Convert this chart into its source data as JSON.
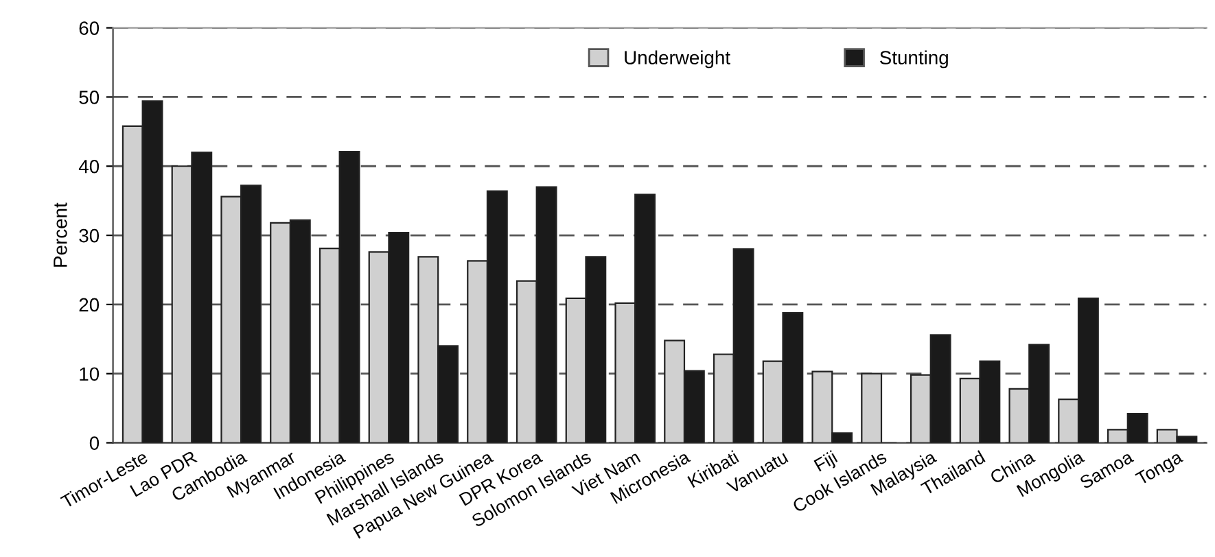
{
  "chart_data": {
    "type": "bar",
    "ylabel": "Percent",
    "categories": [
      "Timor-Leste",
      "Lao PDR",
      "Cambodia",
      "Myanmar",
      "Indonesia",
      "Philippines",
      "Marshall Islands",
      "Papua New Guinea",
      "DPR Korea",
      "Solomon Islands",
      "Viet Nam",
      "Micronesia",
      "Kiribati",
      "Vanuatu",
      "Fiji",
      "Cook Islands",
      "Malaysia",
      "Thailand",
      "China",
      "Mongolia",
      "Samoa",
      "Tonga"
    ],
    "series": [
      {
        "name": "Underweight",
        "color": "#d0d0d0",
        "values": [
          45.8,
          40.0,
          35.6,
          31.8,
          28.1,
          27.6,
          26.9,
          26.3,
          23.4,
          20.9,
          20.2,
          14.8,
          12.8,
          11.8,
          10.3,
          10.0,
          9.8,
          9.3,
          7.8,
          6.3,
          1.9,
          1.9
        ]
      },
      {
        "name": "Stunting",
        "color": "#1a1a1a",
        "values": [
          49.4,
          42.0,
          37.2,
          32.2,
          42.1,
          30.4,
          14.0,
          36.4,
          37.0,
          26.9,
          35.9,
          10.4,
          28.0,
          18.8,
          1.4,
          null,
          15.6,
          11.8,
          14.2,
          20.9,
          4.2,
          0.9
        ]
      }
    ],
    "ylim": [
      0,
      60
    ],
    "yticks": [
      0,
      10,
      20,
      30,
      40,
      50,
      60
    ],
    "grid": "y",
    "line_style": "dashed",
    "legend": "top"
  }
}
